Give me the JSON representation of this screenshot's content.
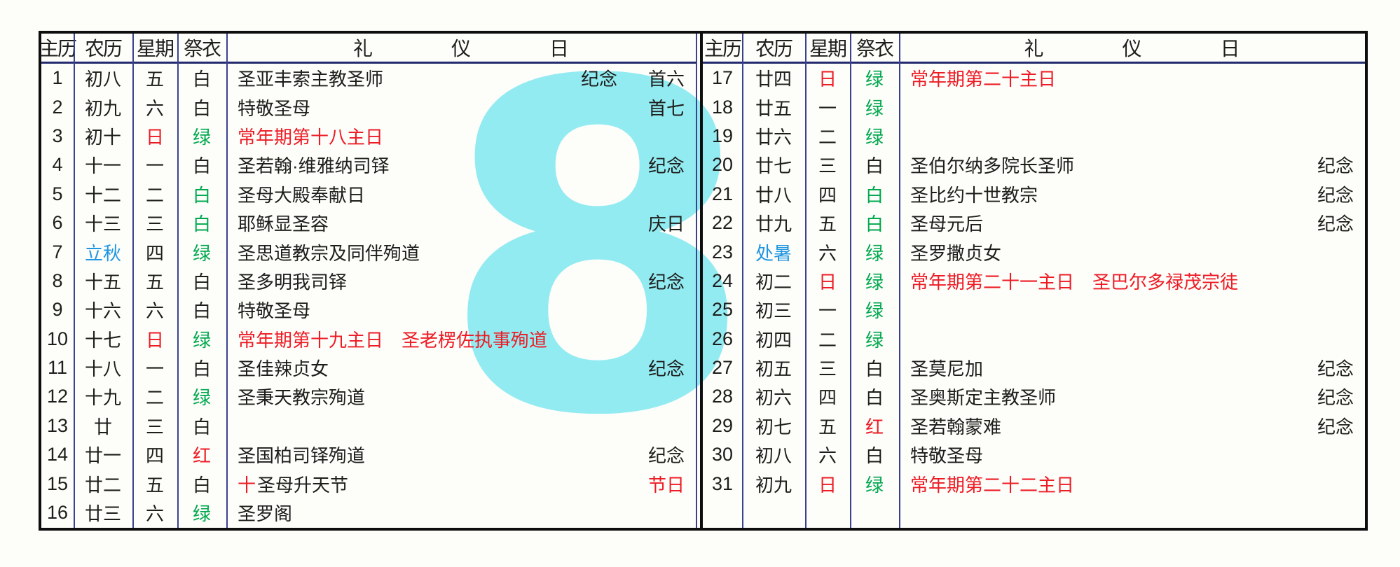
{
  "colors": {
    "black": "#1d1d1b",
    "red": "#ed1b24",
    "green": "#00a84e",
    "blue": "#2096e0"
  },
  "watermark": {
    "text": "8"
  },
  "headers": {
    "solar": "主历",
    "lunar": "农历",
    "weekday": "星期",
    "vestment": "祭衣",
    "liturgy": [
      "礼",
      "仪",
      "日"
    ]
  },
  "left": {
    "rows": [
      {
        "day": "1",
        "lunar": "初八",
        "weekday": "五",
        "vestment": "白",
        "feast": "圣亚丰索主教圣师",
        "notes": [
          {
            "text": "纪念"
          },
          {
            "text": "首六"
          }
        ]
      },
      {
        "day": "2",
        "lunar": "初九",
        "weekday": "六",
        "vestment": "白",
        "feast": "特敬圣母",
        "notes": [
          {
            "text": "首七"
          }
        ]
      },
      {
        "day": "3",
        "lunar": "初十",
        "weekday": "日",
        "weekday_color": "red",
        "vestment": "绿",
        "vestment_color": "green",
        "feast": "常年期第十八主日",
        "feast_color": "red"
      },
      {
        "day": "4",
        "lunar": "十一",
        "weekday": "一",
        "vestment": "白",
        "feast": "圣若翰·维雅纳司铎",
        "notes": [
          {
            "text": "纪念"
          }
        ]
      },
      {
        "day": "5",
        "lunar": "十二",
        "weekday": "二",
        "vestment": "白",
        "vestment_color": "green",
        "feast": "圣母大殿奉献日"
      },
      {
        "day": "6",
        "lunar": "十三",
        "weekday": "三",
        "vestment": "白",
        "vestment_color": "green",
        "feast": "耶稣显圣容",
        "notes": [
          {
            "text": "庆日"
          }
        ]
      },
      {
        "day": "7",
        "lunar": "立秋",
        "lunar_color": "blue",
        "weekday": "四",
        "vestment": "绿",
        "vestment_color": "green",
        "feast": "圣思道教宗及同伴殉道"
      },
      {
        "day": "8",
        "lunar": "十五",
        "weekday": "五",
        "vestment": "白",
        "feast": "圣多明我司铎",
        "notes": [
          {
            "text": "纪念"
          }
        ]
      },
      {
        "day": "9",
        "lunar": "十六",
        "weekday": "六",
        "vestment": "白",
        "feast": "特敬圣母"
      },
      {
        "day": "10",
        "lunar": "十七",
        "weekday": "日",
        "weekday_color": "red",
        "vestment": "绿",
        "vestment_color": "green",
        "feast": "常年期第十九主日　圣老楞佐执事殉道",
        "feast_color": "red"
      },
      {
        "day": "11",
        "lunar": "十八",
        "weekday": "一",
        "vestment": "白",
        "feast": "圣佳辣贞女",
        "notes": [
          {
            "text": "纪念"
          }
        ]
      },
      {
        "day": "12",
        "lunar": "十九",
        "weekday": "二",
        "vestment": "绿",
        "vestment_color": "green",
        "feast": "圣秉天教宗殉道"
      },
      {
        "day": "13",
        "lunar": "廿",
        "weekday": "三",
        "vestment": "白"
      },
      {
        "day": "14",
        "lunar": "廿一",
        "weekday": "四",
        "vestment": "红",
        "vestment_color": "red",
        "feast": "圣国柏司铎殉道",
        "notes": [
          {
            "text": "纪念"
          }
        ]
      },
      {
        "day": "15",
        "lunar": "廿二",
        "weekday": "五",
        "vestment": "白",
        "prefix": "十",
        "prefix_color": "red",
        "feast": "圣母升天节",
        "notes": [
          {
            "text": "节日",
            "color": "red"
          }
        ]
      },
      {
        "day": "16",
        "lunar": "廿三",
        "weekday": "六",
        "vestment": "绿",
        "vestment_color": "green",
        "feast": "圣罗阁"
      }
    ]
  },
  "right": {
    "rows": [
      {
        "day": "17",
        "lunar": "廿四",
        "weekday": "日",
        "weekday_color": "red",
        "vestment": "绿",
        "vestment_color": "green",
        "feast": "常年期第二十主日",
        "feast_color": "red"
      },
      {
        "day": "18",
        "lunar": "廿五",
        "weekday": "一",
        "vestment": "绿",
        "vestment_color": "green"
      },
      {
        "day": "19",
        "lunar": "廿六",
        "weekday": "二",
        "vestment": "绿",
        "vestment_color": "green"
      },
      {
        "day": "20",
        "lunar": "廿七",
        "weekday": "三",
        "vestment": "白",
        "feast": "圣伯尔纳多院长圣师",
        "notes": [
          {
            "text": "纪念"
          }
        ]
      },
      {
        "day": "21",
        "lunar": "廿八",
        "weekday": "四",
        "vestment": "白",
        "vestment_color": "green",
        "feast": "圣比约十世教宗",
        "notes": [
          {
            "text": "纪念"
          }
        ]
      },
      {
        "day": "22",
        "lunar": "廿九",
        "weekday": "五",
        "vestment": "白",
        "vestment_color": "green",
        "feast": "圣母元后",
        "notes": [
          {
            "text": "纪念"
          }
        ]
      },
      {
        "day": "23",
        "lunar": "处暑",
        "lunar_color": "blue",
        "weekday": "六",
        "vestment": "绿",
        "vestment_color": "green",
        "feast": "圣罗撒贞女"
      },
      {
        "day": "24",
        "lunar": "初二",
        "weekday": "日",
        "weekday_color": "red",
        "vestment": "绿",
        "vestment_color": "green",
        "feast": "常年期第二十一主日　圣巴尔多禄茂宗徒",
        "feast_color": "red"
      },
      {
        "day": "25",
        "lunar": "初三",
        "weekday": "一",
        "vestment": "绿",
        "vestment_color": "green"
      },
      {
        "day": "26",
        "lunar": "初四",
        "weekday": "二",
        "vestment": "绿",
        "vestment_color": "green"
      },
      {
        "day": "27",
        "lunar": "初五",
        "weekday": "三",
        "vestment": "白",
        "feast": "圣莫尼加",
        "notes": [
          {
            "text": "纪念"
          }
        ]
      },
      {
        "day": "28",
        "lunar": "初六",
        "weekday": "四",
        "vestment": "白",
        "feast": "圣奥斯定主教圣师",
        "notes": [
          {
            "text": "纪念"
          }
        ]
      },
      {
        "day": "29",
        "lunar": "初七",
        "weekday": "五",
        "vestment": "红",
        "vestment_color": "red",
        "feast": "圣若翰蒙难",
        "notes": [
          {
            "text": "纪念"
          }
        ]
      },
      {
        "day": "30",
        "lunar": "初八",
        "weekday": "六",
        "vestment": "白",
        "feast": "特敬圣母"
      },
      {
        "day": "31",
        "lunar": "初九",
        "weekday": "日",
        "weekday_color": "red",
        "vestment": "绿",
        "vestment_color": "green",
        "feast": "常年期第二十二主日",
        "feast_color": "red"
      }
    ]
  }
}
